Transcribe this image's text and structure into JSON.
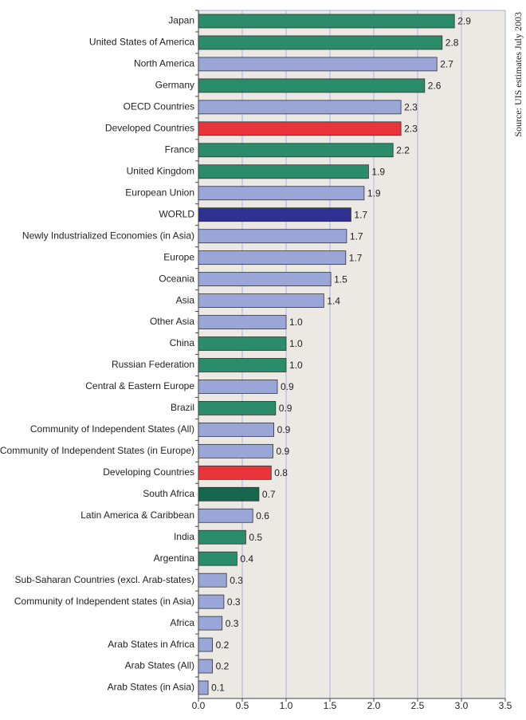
{
  "chart_data": {
    "type": "hbar",
    "categories": [
      "Japan",
      "United States of America",
      "North America",
      "Germany",
      "OECD Countries",
      "Developed Countries",
      "France",
      "United Kingdom",
      "European Union",
      "WORLD",
      "Newly Industrialized Economies (in Asia)",
      "Europe",
      "Oceania",
      "Asia",
      "Other Asia",
      "China",
      "Russian Federation",
      "Central & Eastern Europe",
      "Brazil",
      "Community of Independent States (All)",
      "Community of Independent States (in Europe)",
      "Developing Countries",
      "South Africa",
      "Latin America & Caribbean",
      "India",
      "Argentina",
      "Sub-Saharan Countries (excl. Arab-states)",
      "Community of Independent states (in Asia)",
      "Africa",
      "Arab States in Africa",
      "Arab States (All)",
      "Arab States (in Asia)"
    ],
    "values": [
      2.92,
      2.78,
      2.72,
      2.58,
      2.31,
      2.31,
      2.22,
      1.94,
      1.89,
      1.74,
      1.69,
      1.68,
      1.51,
      1.43,
      1.0,
      1.0,
      1.0,
      0.9,
      0.88,
      0.86,
      0.85,
      0.83,
      0.69,
      0.62,
      0.54,
      0.44,
      0.32,
      0.29,
      0.27,
      0.16,
      0.16,
      0.11
    ],
    "value_labels": [
      "2.9",
      "2.8",
      "2.7",
      "2.6",
      "2.3",
      "2.3",
      "2.2",
      "1.9",
      "1.9",
      "1.7",
      "1.7",
      "1.7",
      "1.5",
      "1.4",
      "1.0",
      "1.0",
      "1.0",
      "0.9",
      "0.9",
      "0.9",
      "0.9",
      "0.8",
      "0.7",
      "0.6",
      "0.5",
      "0.4",
      "0.3",
      "0.3",
      "0.3",
      "0.2",
      "0.2",
      "0.1"
    ],
    "colors": [
      "#2a8c6a",
      "#2a8c6a",
      "#9aa6d8",
      "#2a8c6a",
      "#9aa6d8",
      "#e8343a",
      "#2a8c6a",
      "#2a8c6a",
      "#9aa6d8",
      "#2e3192",
      "#9aa6d8",
      "#9aa6d8",
      "#9aa6d8",
      "#9aa6d8",
      "#9aa6d8",
      "#2a8c6a",
      "#2a8c6a",
      "#9aa6d8",
      "#2a8c6a",
      "#9aa6d8",
      "#9aa6d8",
      "#e8343a",
      "#16664e",
      "#9aa6d8",
      "#2a8c6a",
      "#2a8c6a",
      "#9aa6d8",
      "#9aa6d8",
      "#9aa6d8",
      "#9aa6d8",
      "#9aa6d8",
      "#9aa6d8"
    ],
    "xlim": [
      0,
      3.5
    ],
    "xticks": [
      {
        "value": 0,
        "label": "0.0"
      },
      0.5,
      {
        "value": 1,
        "label": "1.0"
      },
      1.5,
      {
        "value": 2,
        "label": "2.0"
      },
      2.5,
      {
        "value": 3,
        "label": "3.0"
      },
      3.5
    ],
    "grid": true,
    "source": "Source: UIS estimates July 2003"
  }
}
